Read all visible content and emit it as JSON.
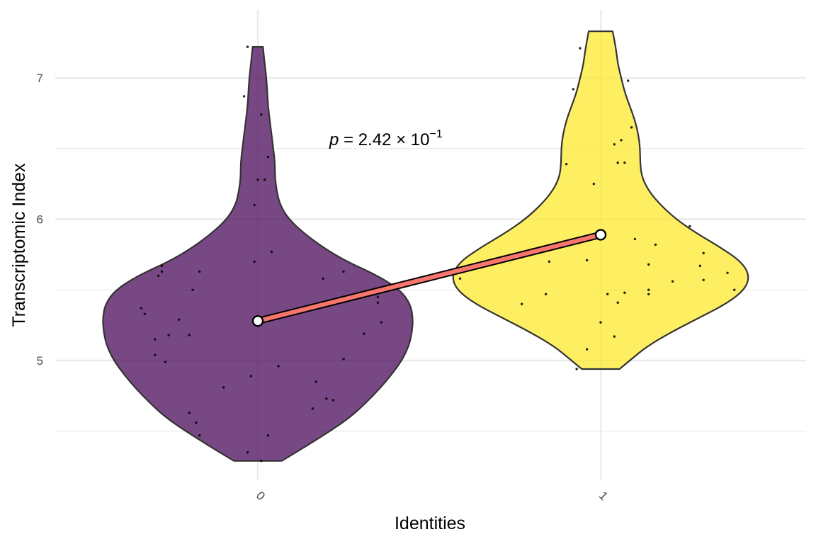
{
  "chart_data": {
    "type": "violin",
    "xlabel": "Identities",
    "ylabel": "Transcriptomic Index",
    "categories": [
      "0",
      "1"
    ],
    "ylim": [
      4.2,
      7.35
    ],
    "major_ticks": [
      5,
      6,
      7
    ],
    "minor_ticks": [
      4.5,
      5.5,
      6.5
    ],
    "grid": true,
    "colors": {
      "group_0": "#440154",
      "group_1": "#FDE725",
      "mean_line": "#F8766D"
    },
    "annotation": {
      "prefix": "p",
      "equals": " = 2.42 × 10",
      "exponent": "−1"
    },
    "groups": [
      {
        "name": "0",
        "min": 4.29,
        "max": 7.22,
        "mean": 5.28,
        "density_half_width": [
          [
            4.29,
            0.14
          ],
          [
            4.4,
            0.29
          ],
          [
            4.5,
            0.42
          ],
          [
            4.6,
            0.54
          ],
          [
            4.7,
            0.63
          ],
          [
            4.8,
            0.71
          ],
          [
            4.9,
            0.78
          ],
          [
            5.0,
            0.84
          ],
          [
            5.1,
            0.88
          ],
          [
            5.2,
            0.9
          ],
          [
            5.3,
            0.905
          ],
          [
            5.4,
            0.89
          ],
          [
            5.5,
            0.83
          ],
          [
            5.6,
            0.7
          ],
          [
            5.7,
            0.52
          ],
          [
            5.8,
            0.38
          ],
          [
            5.9,
            0.27
          ],
          [
            6.0,
            0.18
          ],
          [
            6.1,
            0.13
          ],
          [
            6.2,
            0.11
          ],
          [
            6.3,
            0.1
          ],
          [
            6.4,
            0.1
          ],
          [
            6.5,
            0.09
          ],
          [
            6.6,
            0.08
          ],
          [
            6.7,
            0.07
          ],
          [
            6.8,
            0.06
          ],
          [
            6.9,
            0.055
          ],
          [
            7.0,
            0.05
          ],
          [
            7.1,
            0.04
          ],
          [
            7.22,
            0.03
          ]
        ],
        "points": [
          [
            -0.03,
            7.22
          ],
          [
            -0.04,
            6.87
          ],
          [
            0.01,
            6.74
          ],
          [
            0.03,
            6.44
          ],
          [
            0.0,
            6.28
          ],
          [
            0.02,
            6.28
          ],
          [
            -0.01,
            6.1
          ],
          [
            0.04,
            5.77
          ],
          [
            -0.01,
            5.7
          ],
          [
            -0.28,
            5.67
          ],
          [
            -0.28,
            5.63
          ],
          [
            -0.29,
            5.6
          ],
          [
            -0.17,
            5.63
          ],
          [
            0.25,
            5.63
          ],
          [
            0.19,
            5.58
          ],
          [
            -0.19,
            5.5
          ],
          [
            0.25,
            5.45
          ],
          [
            0.35,
            5.45
          ],
          [
            0.24,
            5.41
          ],
          [
            0.35,
            5.41
          ],
          [
            -0.34,
            5.37
          ],
          [
            -0.33,
            5.33
          ],
          [
            -0.23,
            5.29
          ],
          [
            0.36,
            5.27
          ],
          [
            -0.26,
            5.18
          ],
          [
            -0.2,
            5.18
          ],
          [
            0.31,
            5.19
          ],
          [
            -0.3,
            5.15
          ],
          [
            -0.3,
            5.04
          ],
          [
            -0.27,
            4.99
          ],
          [
            0.25,
            5.01
          ],
          [
            0.06,
            4.96
          ],
          [
            -0.02,
            4.89
          ],
          [
            0.17,
            4.85
          ],
          [
            -0.1,
            4.81
          ],
          [
            0.2,
            4.73
          ],
          [
            0.22,
            4.72
          ],
          [
            0.16,
            4.66
          ],
          [
            -0.2,
            4.63
          ],
          [
            -0.18,
            4.56
          ],
          [
            -0.17,
            4.47
          ],
          [
            0.03,
            4.47
          ],
          [
            -0.03,
            4.35
          ],
          [
            0.01,
            4.29
          ]
        ]
      },
      {
        "name": "1",
        "min": 4.94,
        "max": 7.33,
        "mean": 5.89,
        "density_half_width": [
          [
            4.94,
            0.11
          ],
          [
            5.0,
            0.17
          ],
          [
            5.1,
            0.27
          ],
          [
            5.2,
            0.41
          ],
          [
            5.3,
            0.57
          ],
          [
            5.4,
            0.73
          ],
          [
            5.5,
            0.84
          ],
          [
            5.6,
            0.87
          ],
          [
            5.7,
            0.82
          ],
          [
            5.8,
            0.7
          ],
          [
            5.9,
            0.56
          ],
          [
            6.0,
            0.44
          ],
          [
            6.1,
            0.35
          ],
          [
            6.2,
            0.28
          ],
          [
            6.3,
            0.24
          ],
          [
            6.4,
            0.23
          ],
          [
            6.5,
            0.23
          ],
          [
            6.6,
            0.22
          ],
          [
            6.7,
            0.2
          ],
          [
            6.8,
            0.17
          ],
          [
            6.9,
            0.14
          ],
          [
            7.0,
            0.12
          ],
          [
            7.1,
            0.1
          ],
          [
            7.2,
            0.09
          ],
          [
            7.33,
            0.07
          ]
        ],
        "points": [
          [
            -0.06,
            7.21
          ],
          [
            0.08,
            6.98
          ],
          [
            -0.08,
            6.92
          ],
          [
            0.09,
            6.65
          ],
          [
            0.06,
            6.56
          ],
          [
            0.04,
            6.53
          ],
          [
            0.05,
            6.4
          ],
          [
            0.07,
            6.4
          ],
          [
            -0.1,
            6.39
          ],
          [
            -0.02,
            6.25
          ],
          [
            0.26,
            5.95
          ],
          [
            0.1,
            5.86
          ],
          [
            0.16,
            5.82
          ],
          [
            0.3,
            5.76
          ],
          [
            -0.15,
            5.7
          ],
          [
            -0.04,
            5.71
          ],
          [
            0.14,
            5.68
          ],
          [
            0.29,
            5.67
          ],
          [
            0.37,
            5.62
          ],
          [
            -0.41,
            5.58
          ],
          [
            0.21,
            5.56
          ],
          [
            0.3,
            5.57
          ],
          [
            0.14,
            5.5
          ],
          [
            0.07,
            5.48
          ],
          [
            0.14,
            5.47
          ],
          [
            0.39,
            5.5
          ],
          [
            -0.16,
            5.47
          ],
          [
            0.02,
            5.47
          ],
          [
            0.05,
            5.41
          ],
          [
            -0.23,
            5.4
          ],
          [
            0.0,
            5.27
          ],
          [
            0.04,
            5.17
          ],
          [
            -0.04,
            5.08
          ],
          [
            -0.07,
            4.94
          ]
        ]
      }
    ]
  }
}
